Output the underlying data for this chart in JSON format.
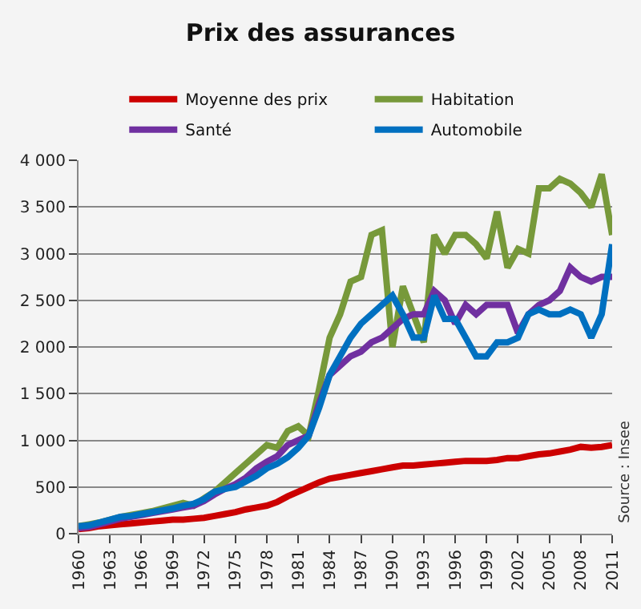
{
  "chart_data": {
    "type": "line",
    "title": "Prix des assurances",
    "x": [
      1960,
      1961,
      1962,
      1963,
      1964,
      1965,
      1966,
      1967,
      1968,
      1969,
      1970,
      1971,
      1972,
      1973,
      1974,
      1975,
      1976,
      1977,
      1978,
      1979,
      1980,
      1981,
      1982,
      1983,
      1984,
      1985,
      1986,
      1987,
      1988,
      1989,
      1990,
      1991,
      1992,
      1993,
      1994,
      1995,
      1996,
      1997,
      1998,
      1999,
      2000,
      2001,
      2002,
      2003,
      2004,
      2005,
      2006,
      2007,
      2008,
      2009,
      2010,
      2011
    ],
    "series": [
      {
        "name": "Moyenne des prix",
        "color": "#cc0000",
        "values": [
          50,
          60,
          80,
          90,
          100,
          110,
          120,
          130,
          140,
          150,
          150,
          160,
          170,
          190,
          210,
          230,
          260,
          280,
          300,
          340,
          400,
          450,
          500,
          550,
          590,
          610,
          630,
          650,
          670,
          690,
          710,
          730,
          730,
          740,
          750,
          760,
          770,
          780,
          780,
          780,
          790,
          810,
          810,
          830,
          850,
          860,
          880,
          900,
          930,
          920,
          930,
          950
        ]
      },
      {
        "name": "Habitation",
        "color": "#77993a",
        "values": [
          80,
          100,
          120,
          150,
          180,
          200,
          220,
          240,
          270,
          300,
          330,
          300,
          380,
          450,
          550,
          650,
          750,
          850,
          950,
          920,
          1100,
          1150,
          1050,
          1550,
          2100,
          2350,
          2700,
          2750,
          3200,
          3250,
          2000,
          2650,
          2350,
          2050,
          3200,
          3000,
          3200,
          3200,
          3100,
          2950,
          3450,
          2850,
          3050,
          3000,
          3700,
          3700,
          3800,
          3750,
          3650,
          3500,
          3850,
          3200
        ]
      },
      {
        "name": "Santé",
        "color": "#7030a0",
        "values": [
          60,
          70,
          100,
          130,
          160,
          180,
          200,
          220,
          240,
          260,
          280,
          300,
          350,
          420,
          480,
          530,
          600,
          700,
          770,
          830,
          950,
          1000,
          1050,
          1400,
          1700,
          1800,
          1900,
          1950,
          2050,
          2100,
          2200,
          2300,
          2350,
          2350,
          2600,
          2500,
          2250,
          2450,
          2350,
          2450,
          2450,
          2450,
          2150,
          2350,
          2450,
          2500,
          2600,
          2850,
          2750,
          2700,
          2750,
          2750
        ]
      },
      {
        "name": "Automobile",
        "color": "#0070c0",
        "values": [
          80,
          90,
          120,
          150,
          180,
          190,
          210,
          230,
          250,
          270,
          300,
          320,
          370,
          450,
          480,
          500,
          560,
          620,
          700,
          750,
          820,
          920,
          1050,
          1350,
          1700,
          1900,
          2100,
          2250,
          2350,
          2450,
          2550,
          2350,
          2100,
          2100,
          2550,
          2300,
          2300,
          2100,
          1900,
          1900,
          2050,
          2050,
          2100,
          2350,
          2400,
          2350,
          2350,
          2400,
          2350,
          2100,
          2350,
          3100
        ]
      }
    ],
    "xlim": [
      1960,
      2011
    ],
    "xticks": [
      1960,
      1963,
      1966,
      1969,
      1972,
      1975,
      1978,
      1981,
      1984,
      1987,
      1990,
      1993,
      1996,
      1999,
      2002,
      2005,
      2008,
      2011
    ],
    "ylim": [
      0,
      4000
    ],
    "yticks": [
      {
        "value": 0,
        "label": "0"
      },
      {
        "value": 500,
        "label": "500"
      },
      {
        "value": 1000,
        "label": "1 000"
      },
      {
        "value": 1500,
        "label": "1 500"
      },
      {
        "value": 2000,
        "label": "2 000"
      },
      {
        "value": 2500,
        "label": "2 500"
      },
      {
        "value": 3000,
        "label": "3 000"
      },
      {
        "value": 3500,
        "label": "3 500"
      },
      {
        "value": 4000,
        "label": "4 000"
      }
    ],
    "grid": "y",
    "legend": "top",
    "marker": "none",
    "line_style": "solid",
    "annotations": [
      "Source : Insee"
    ]
  }
}
